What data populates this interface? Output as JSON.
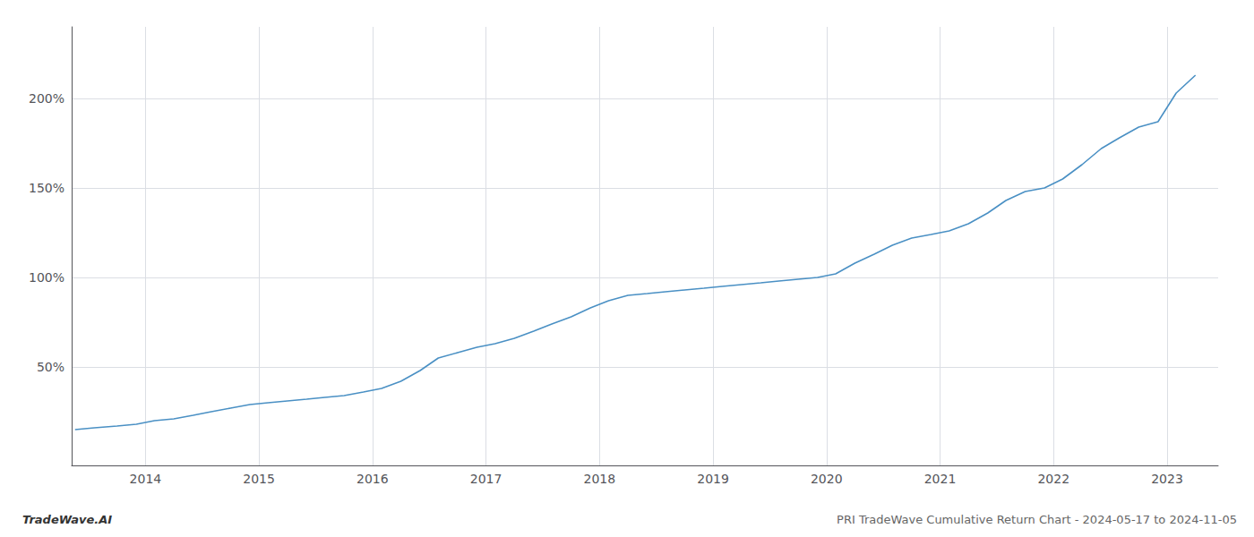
{
  "chart_data": {
    "type": "line",
    "title": "PRI TradeWave Cumulative Return Chart - 2024-05-17 to 2024-11-05",
    "subtitle": "TradeWave.AI",
    "color": "#4a90c4",
    "grid": true,
    "x": [
      2013.38,
      2013.55,
      2013.75,
      2013.92,
      2014.08,
      2014.25,
      2014.42,
      2014.58,
      2014.75,
      2014.92,
      2015.08,
      2015.25,
      2015.42,
      2015.58,
      2015.75,
      2015.92,
      2016.08,
      2016.25,
      2016.42,
      2016.58,
      2016.75,
      2016.92,
      2017.08,
      2017.25,
      2017.42,
      2017.58,
      2017.75,
      2017.92,
      2018.08,
      2018.25,
      2018.42,
      2018.58,
      2018.75,
      2018.92,
      2019.08,
      2019.25,
      2019.42,
      2019.58,
      2019.75,
      2019.92,
      2020.08,
      2020.25,
      2020.42,
      2020.58,
      2020.75,
      2020.92,
      2021.08,
      2021.25,
      2021.42,
      2021.58,
      2021.75,
      2021.92,
      2022.08,
      2022.25,
      2022.42,
      2022.58,
      2022.75,
      2022.92,
      2023.08,
      2023.25
    ],
    "values": [
      15,
      16,
      17,
      18,
      20,
      21,
      23,
      25,
      27,
      29,
      30,
      31,
      32,
      33,
      34,
      36,
      38,
      42,
      48,
      55,
      58,
      61,
      63,
      66,
      70,
      74,
      78,
      83,
      87,
      90,
      91,
      92,
      93,
      94,
      95,
      96,
      97,
      98,
      99,
      100,
      102,
      108,
      113,
      118,
      122,
      124,
      126,
      130,
      136,
      143,
      148,
      150,
      155,
      163,
      172,
      178,
      184,
      187,
      203,
      213
    ],
    "xlim": [
      2013.35,
      2023.45
    ],
    "xticks": [
      2014,
      2015,
      2016,
      2017,
      2018,
      2019,
      2020,
      2021,
      2022,
      2023
    ],
    "ylim": [
      -5,
      240
    ],
    "yticks": [
      {
        "value": 50,
        "label": "50%"
      },
      {
        "value": 100,
        "label": "100%"
      },
      {
        "value": 150,
        "label": "150%"
      },
      {
        "value": 200,
        "label": "200%"
      }
    ]
  }
}
